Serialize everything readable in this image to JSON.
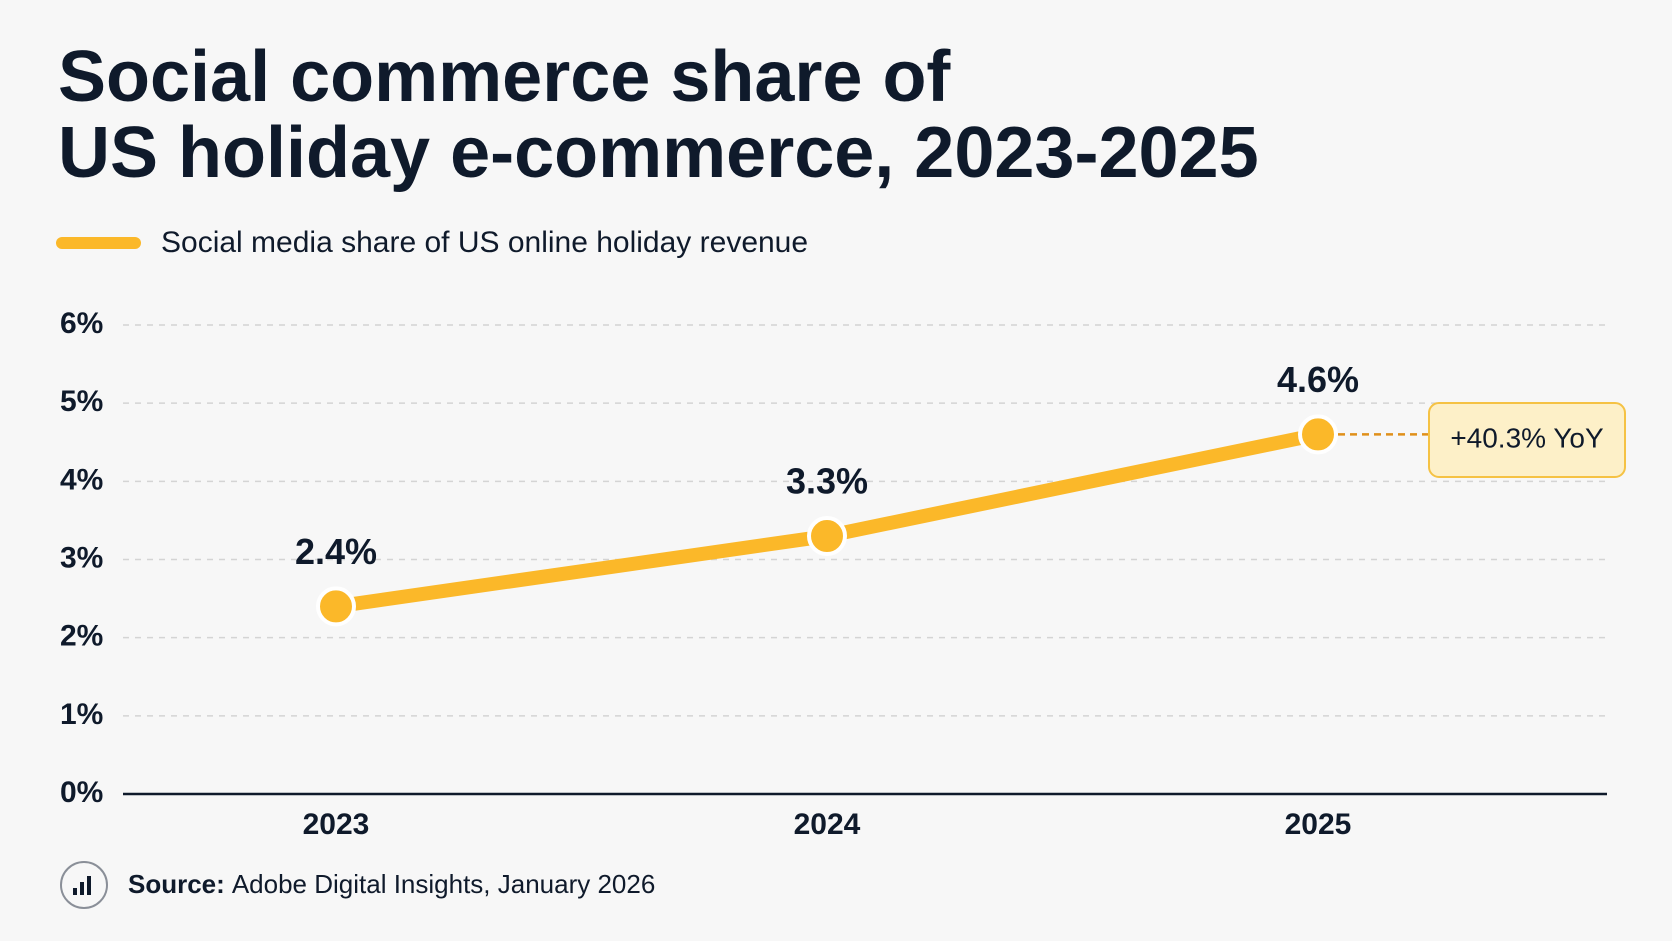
{
  "chart_data": {
    "type": "line",
    "title_lines": [
      "Social commerce share of",
      "US holiday e-commerce, 2023-2025"
    ],
    "categories": [
      "2023",
      "2024",
      "2025"
    ],
    "series": [
      {
        "name": "Social media share of US online holiday revenue",
        "color": "#fbb829",
        "values": [
          2.4,
          3.3,
          4.6
        ],
        "value_labels": [
          "2.4%",
          "3.3%",
          "4.6%"
        ]
      }
    ],
    "ylim": [
      0,
      6
    ],
    "yticks": [
      {
        "value": 0,
        "label": "0%"
      },
      {
        "value": 1,
        "label": "1%"
      },
      {
        "value": 2,
        "label": "2%"
      },
      {
        "value": 3,
        "label": "3%"
      },
      {
        "value": 4,
        "label": "4%"
      },
      {
        "value": 5,
        "label": "5%"
      },
      {
        "value": 6,
        "label": "6%"
      }
    ],
    "grid": true,
    "annotation": "+40.3% YoY",
    "source_label": "Source:",
    "source": "Adobe Digital Insights, January 2026"
  }
}
